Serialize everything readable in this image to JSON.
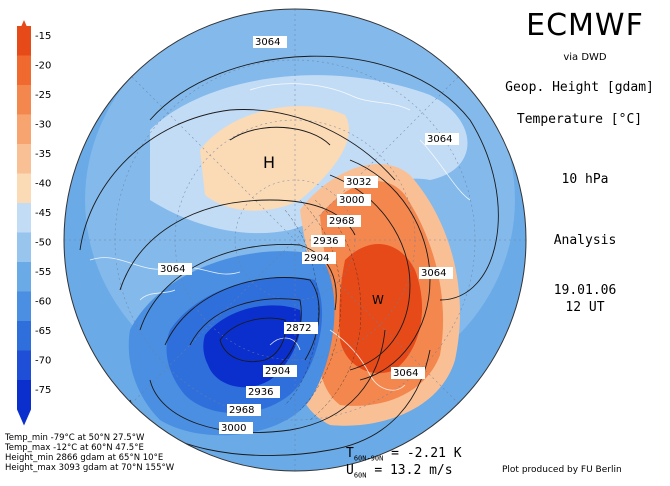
{
  "header": {
    "brand": "ECMWF",
    "via": "via DWD",
    "param1": "Geop. Height [gdam]",
    "param2": "Temperature [°C]",
    "level": "10 hPa",
    "kind": "Analysis",
    "date": "19.01.06",
    "time": "12 UT"
  },
  "colorbar": {
    "labels": [
      "-15",
      "-20",
      "-25",
      "-30",
      "-35",
      "-40",
      "-45",
      "-50",
      "-55",
      "-60",
      "-65",
      "-70",
      "-75"
    ],
    "colors": [
      "#e64a19",
      "#f0692e",
      "#f4874e",
      "#f7a471",
      "#f9c096",
      "#fbdab6",
      "#c3dcf6",
      "#97c5ee",
      "#6aaae6",
      "#4a8fe1",
      "#2f6fdc",
      "#1e4fd6",
      "#0a2fcc"
    ]
  },
  "map": {
    "contour_labels": [
      "3064",
      "3064",
      "3064",
      "3064",
      "3032",
      "3000",
      "2968",
      "2936",
      "2904",
      "2872",
      "2904",
      "2936",
      "2968",
      "3000",
      "3064"
    ],
    "high_symbol": "H",
    "warm_symbol": "W"
  },
  "stats": {
    "temp_min": "Temp_min -79°C at 50°N 27.5°W",
    "temp_max": "Temp_max -12°C at 60°N 47.5°E",
    "height_min": "Height_min 2866 gdam at 65°N 10°E",
    "height_max": "Height_max 3093 gdam at 70°N 155°W"
  },
  "indices": {
    "t_label": "T",
    "t_sub": "60N-90N",
    "t_value": "= -2.21 K",
    "u_label": "U",
    "u_sub": "60N",
    "u_value": "= 13.2 m/s"
  },
  "footer": {
    "credit": "Plot produced by FU Berlin"
  }
}
